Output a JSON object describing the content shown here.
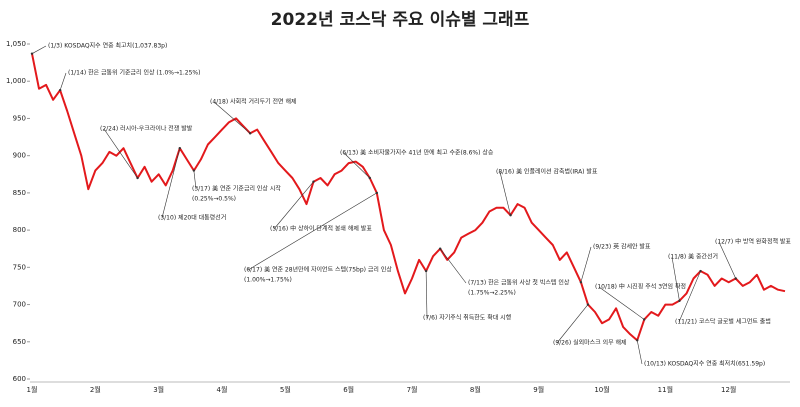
{
  "chart_data": {
    "type": "line",
    "title": "2022년 코스닥 주요 이슈별 그래프",
    "categories": [
      "1월",
      null,
      null,
      null,
      null,
      null,
      null,
      null,
      null,
      "2월",
      null,
      null,
      null,
      null,
      null,
      null,
      null,
      null,
      "3월",
      null,
      null,
      null,
      null,
      null,
      null,
      null,
      null,
      "4월",
      null,
      null,
      null,
      null,
      null,
      null,
      null,
      null,
      "5월",
      null,
      null,
      null,
      null,
      null,
      null,
      null,
      null,
      "6월",
      null,
      null,
      null,
      null,
      null,
      null,
      null,
      null,
      "7월",
      null,
      null,
      null,
      null,
      null,
      null,
      null,
      null,
      "8월",
      null,
      null,
      null,
      null,
      null,
      null,
      null,
      null,
      "9월",
      null,
      null,
      null,
      null,
      null,
      null,
      null,
      null,
      "10월",
      null,
      null,
      null,
      null,
      null,
      null,
      null,
      null,
      "11월",
      null,
      null,
      null,
      null,
      null,
      null,
      null,
      null,
      "12월",
      null,
      null,
      null,
      null,
      null,
      null,
      null,
      null
    ],
    "series": [
      {
        "color": "#e3191c",
        "values": [
          1037,
          990,
          995,
          975,
          988,
          960,
          930,
          900,
          855,
          880,
          890,
          905,
          900,
          910,
          890,
          870,
          885,
          865,
          875,
          860,
          880,
          910,
          895,
          880,
          895,
          915,
          925,
          935,
          945,
          950,
          940,
          930,
          935,
          920,
          905,
          890,
          880,
          870,
          855,
          835,
          865,
          870,
          860,
          875,
          880,
          890,
          892,
          885,
          870,
          850,
          800,
          780,
          745,
          715,
          735,
          760,
          745,
          765,
          775,
          760,
          770,
          790,
          795,
          800,
          810,
          825,
          830,
          830,
          820,
          835,
          830,
          810,
          800,
          790,
          780,
          760,
          770,
          750,
          730,
          700,
          690,
          675,
          680,
          695,
          670,
          660,
          652,
          680,
          690,
          685,
          700,
          700,
          705,
          715,
          735,
          745,
          740,
          725,
          735,
          730,
          735,
          725,
          730,
          740,
          720,
          725,
          720,
          718
        ]
      }
    ],
    "ylim": [
      600,
      1050
    ],
    "yticks": [
      600,
      650,
      700,
      750,
      800,
      850,
      900,
      950,
      {
        "value": 1000,
        "label": "1,000"
      },
      {
        "value": 1050,
        "label": "1,050"
      }
    ],
    "annotations": [
      {
        "lines": [
          "(1/3) KOSDAQ지수 연중 최고치(1,037.83p)"
        ]
      },
      {
        "lines": [
          "(1/14) 한은 금통위 기준금리 인상 (1.0%→1.25%)"
        ]
      },
      {
        "lines": [
          "(2/24) 러시아-우크라이나 전쟁 발발"
        ]
      },
      {
        "lines": [
          "(3/10) 제20대 대통령선거"
        ]
      },
      {
        "lines": [
          "(3/17) 美 연준 기준금리 인상 시작",
          "(0.25%→0.5%)"
        ]
      },
      {
        "lines": [
          "(4/18) 사회적 거리두기 전면 해제"
        ]
      },
      {
        "lines": [
          "(5/16) 中 상하이 단계적 봉쇄 해제 발표"
        ]
      },
      {
        "lines": [
          "(6/13) 美 소비자물가지수 41년 만에 최고 수준(8.6%) 상승"
        ]
      },
      {
        "lines": [
          "(6/17) 美 연준 28년만에 자이언트 스텝(75bp) 금리 인상",
          "(1.00%→1.75%)"
        ]
      },
      {
        "lines": [
          "(7/6) 자기주식 취득한도 확대 시행"
        ]
      },
      {
        "lines": [
          "(7/13) 한은 금통위 사상 첫 빅스텝 인상",
          "(1.75%→2.25%)"
        ]
      },
      {
        "lines": [
          "(8/16) 美 인플레이션 감축법(IRA) 발표"
        ]
      },
      {
        "lines": [
          "(9/23) 英 감세안 발표"
        ]
      },
      {
        "lines": [
          "(9/26) 실외마스크 의무 해제"
        ]
      },
      {
        "lines": [
          "(10/18) 中 시진핑 주석 3연임 확정"
        ]
      },
      {
        "lines": [
          "(10/13) KOSDAQ지수 연중 최저치(651.59p)"
        ]
      },
      {
        "lines": [
          "(11/8) 美 중간선거"
        ]
      },
      {
        "lines": [
          "(11/21) 코스닥 글로벌 세그먼트 출범"
        ]
      },
      {
        "lines": [
          "(12/7) 中 방역 완화정책 발표"
        ]
      }
    ]
  }
}
